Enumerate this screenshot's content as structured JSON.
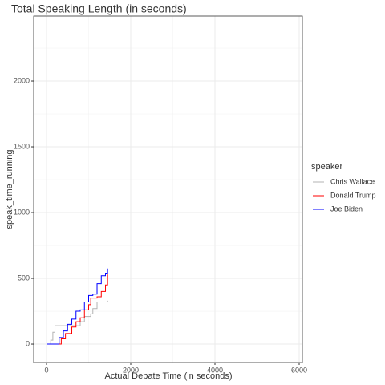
{
  "chart_data": {
    "type": "step",
    "title": "Total Speaking Length (in seconds)",
    "x_label": "Actual Debate Time (in seconds)",
    "y_label": "speak_time_running",
    "legend_title": "speaker",
    "legend_position": "right",
    "grid": true,
    "xlim": [
      -305,
      6076
    ],
    "ylim": [
      -140,
      2494
    ],
    "xticks": [
      0,
      2000,
      4000,
      6000
    ],
    "yticks": [
      0,
      500,
      1000,
      1500,
      2000
    ],
    "series": [
      {
        "name": "Chris Wallace",
        "color": "#b3b3b3",
        "x": [
          0,
          100,
          150,
          200,
          750,
          800,
          900,
          1050,
          1100,
          1200,
          1450
        ],
        "values": [
          0,
          30,
          90,
          140,
          140,
          170,
          210,
          230,
          270,
          320,
          330
        ]
      },
      {
        "name": "Donald Trump",
        "color": "#ff0000",
        "x": [
          50,
          300,
          350,
          450,
          600,
          700,
          800,
          900,
          1000,
          1050,
          1200,
          1300,
          1400,
          1450
        ],
        "values": [
          0,
          0,
          40,
          80,
          130,
          170,
          200,
          260,
          300,
          350,
          360,
          400,
          450,
          530
        ]
      },
      {
        "name": "Joe Biden",
        "color": "#0000ff",
        "x": [
          0,
          250,
          300,
          400,
          500,
          600,
          700,
          800,
          900,
          1000,
          1100,
          1200,
          1300,
          1400,
          1450
        ],
        "values": [
          0,
          0,
          50,
          100,
          150,
          190,
          250,
          260,
          320,
          370,
          380,
          460,
          520,
          540,
          575
        ]
      }
    ]
  }
}
